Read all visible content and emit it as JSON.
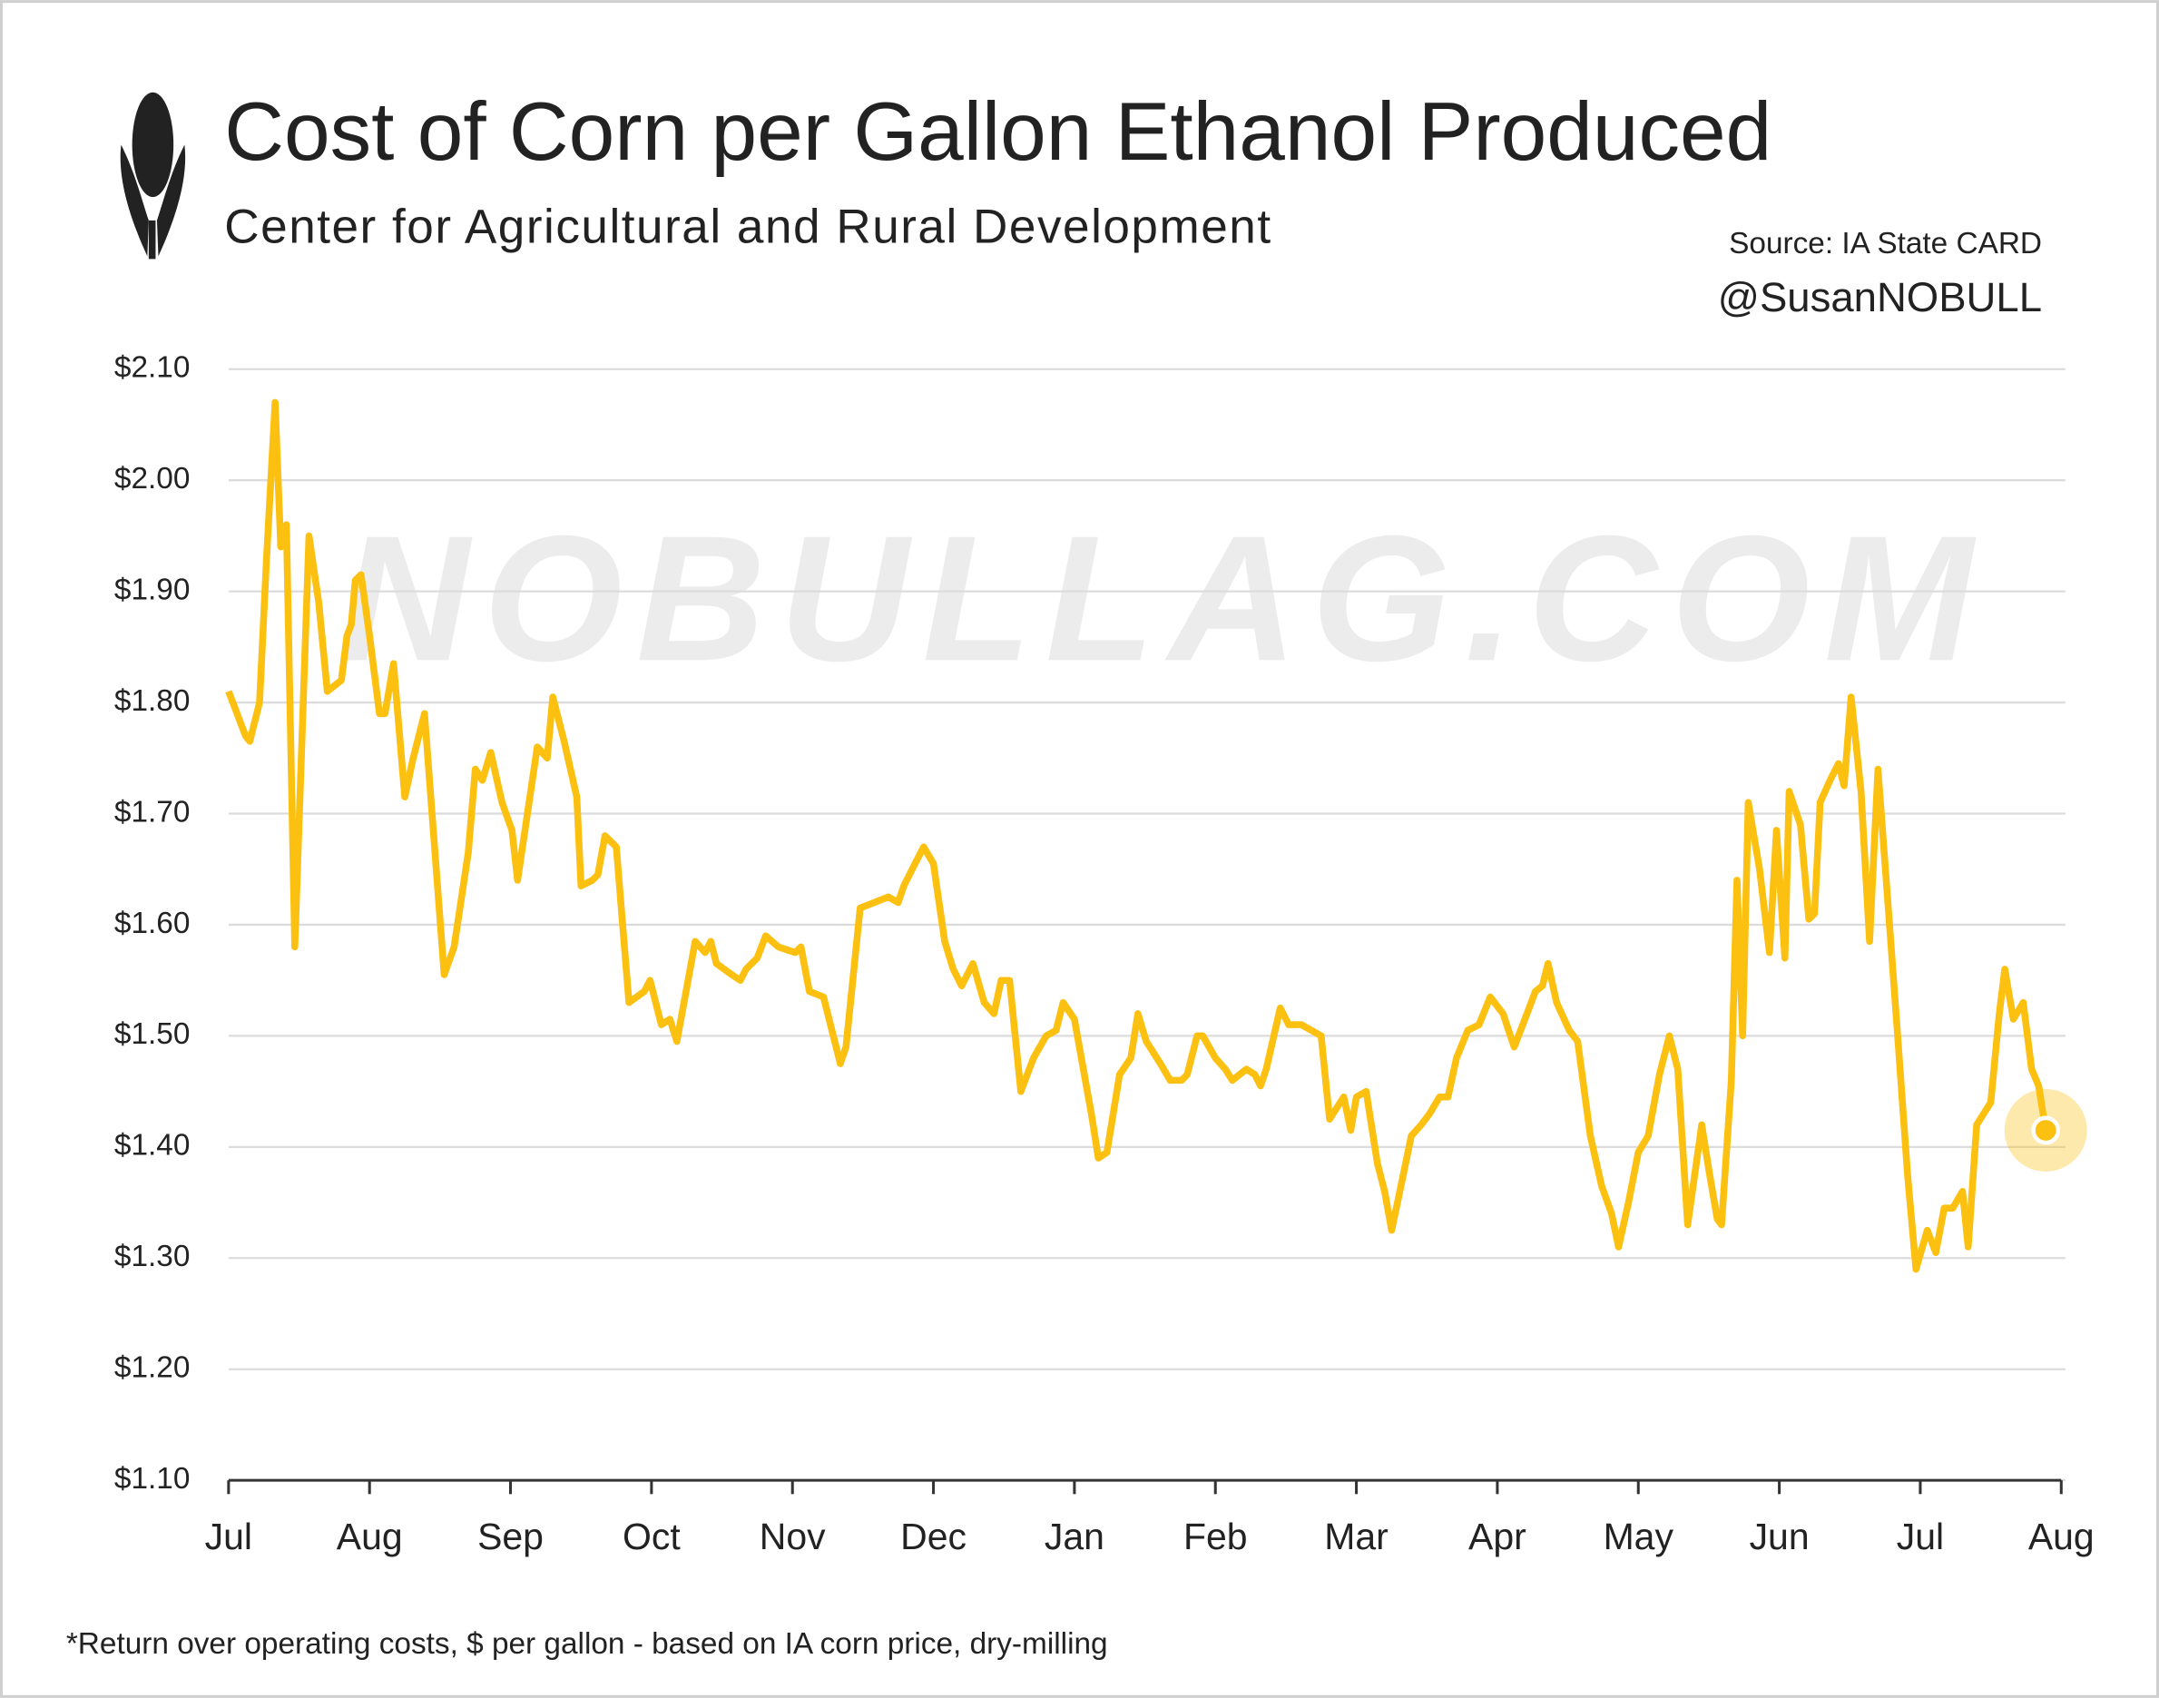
{
  "chart_data": {
    "type": "line",
    "title": "Cost of Corn per Gallon Ethanol Produced",
    "subtitle": "Center for Agricultural and Rural Development",
    "source": "Source: IA State CARD",
    "handle": "@SusanNOBULL",
    "watermark": "NOBULLAG.COM",
    "footnote": "*Return over operating costs, $ per gallon - based on IA corn price, dry-milling",
    "color": "#fcc010",
    "grid": true,
    "xlim": [
      0,
      13
    ],
    "xticks": [
      {
        "value": 0,
        "label": "Jul"
      },
      {
        "value": 1,
        "label": "Aug"
      },
      {
        "value": 2,
        "label": "Sep"
      },
      {
        "value": 3,
        "label": "Oct"
      },
      {
        "value": 4,
        "label": "Nov"
      },
      {
        "value": 5,
        "label": "Dec"
      },
      {
        "value": 6,
        "label": "Jan"
      },
      {
        "value": 7,
        "label": "Feb"
      },
      {
        "value": 8,
        "label": "Mar"
      },
      {
        "value": 9,
        "label": "Apr"
      },
      {
        "value": 10,
        "label": "May"
      },
      {
        "value": 11,
        "label": "Jun"
      },
      {
        "value": 12,
        "label": "Jul"
      },
      {
        "value": 13,
        "label": "Aug"
      }
    ],
    "ylim": [
      1.1,
      2.1
    ],
    "yticks": [
      {
        "value": 1.1,
        "label": "$1.10"
      },
      {
        "value": 1.2,
        "label": "$1.20"
      },
      {
        "value": 1.3,
        "label": "$1.30"
      },
      {
        "value": 1.4,
        "label": "$1.40"
      },
      {
        "value": 1.5,
        "label": "$1.50"
      },
      {
        "value": 1.6,
        "label": "$1.60"
      },
      {
        "value": 1.7,
        "label": "$1.70"
      },
      {
        "value": 1.8,
        "label": "$1.80"
      },
      {
        "value": 1.9,
        "label": "$1.90"
      },
      {
        "value": 2.0,
        "label": "$2.00"
      },
      {
        "value": 2.1,
        "label": "$2.10"
      }
    ],
    "x": [
      0,
      0.12,
      0.15,
      0.2,
      0.22,
      0.27,
      0.33,
      0.37,
      0.41,
      0.47,
      0.57,
      0.64,
      0.7,
      0.8,
      0.84,
      0.87,
      0.9,
      0.94,
      1.0,
      1.07,
      1.11,
      1.17,
      1.25,
      1.31,
      1.39,
      1.53,
      1.6,
      1.7,
      1.75,
      1.8,
      1.86,
      1.94,
      2.01,
      2.05,
      2.19,
      2.26,
      2.3,
      2.38,
      2.47,
      2.5,
      2.58,
      2.62,
      2.67,
      2.75,
      2.84,
      2.95,
      2.99,
      3.07,
      3.13,
      3.18,
      3.31,
      3.38,
      3.42,
      3.46,
      3.57,
      3.63,
      3.67,
      3.75,
      3.81,
      3.9,
      4.02,
      4.06,
      4.12,
      4.22,
      4.29,
      4.34,
      4.38,
      4.48,
      4.58,
      4.68,
      4.75,
      4.79,
      4.87,
      4.93,
      5.0,
      5.08,
      5.14,
      5.2,
      5.28,
      5.36,
      5.43,
      5.48,
      5.54,
      5.62,
      5.71,
      5.8,
      5.87,
      5.92,
      6.0,
      6.12,
      6.17,
      6.23,
      6.32,
      6.4,
      6.45,
      6.51,
      6.61,
      6.68,
      6.76,
      6.8,
      6.87,
      6.91,
      7.0,
      7.07,
      7.12,
      7.22,
      7.28,
      7.32,
      7.36,
      7.46,
      7.52,
      7.61,
      7.75,
      7.81,
      7.91,
      7.96,
      8.0,
      8.07,
      8.15,
      8.2,
      8.25,
      8.3,
      8.39,
      8.46,
      8.52,
      8.59,
      8.65,
      8.71,
      8.79,
      8.87,
      8.95,
      9.04,
      9.12,
      9.21,
      9.27,
      9.32,
      9.36,
      9.42,
      9.51,
      9.57,
      9.66,
      9.74,
      9.81,
      9.86,
      9.93,
      10.0,
      10.07,
      10.15,
      10.22,
      10.28,
      10.35,
      10.45,
      10.5,
      10.56,
      10.59,
      10.66,
      10.7,
      10.74,
      10.78,
      10.86,
      10.93,
      10.98,
      11.04,
      11.07,
      11.15,
      11.21,
      11.25,
      11.29,
      11.36,
      11.42,
      11.46,
      11.51,
      11.58,
      11.64,
      11.7,
      11.77,
      11.84,
      11.91,
      11.97,
      12.05,
      12.11,
      12.17,
      12.23,
      12.3,
      12.34,
      12.4,
      12.5,
      12.56,
      12.6,
      12.66,
      12.73,
      12.79,
      12.84,
      12.89
    ],
    "values": [
      1.81,
      1.77,
      1.765,
      1.79,
      1.8,
      1.93,
      2.07,
      1.94,
      1.96,
      1.58,
      1.95,
      1.89,
      1.81,
      1.82,
      1.86,
      1.87,
      1.91,
      1.915,
      1.86,
      1.79,
      1.79,
      1.835,
      1.715,
      1.75,
      1.79,
      1.555,
      1.58,
      1.665,
      1.74,
      1.73,
      1.755,
      1.71,
      1.685,
      1.64,
      1.76,
      1.75,
      1.805,
      1.765,
      1.715,
      1.635,
      1.64,
      1.645,
      1.68,
      1.67,
      1.53,
      1.54,
      1.55,
      1.51,
      1.515,
      1.495,
      1.585,
      1.575,
      1.585,
      1.565,
      1.555,
      1.55,
      1.56,
      1.57,
      1.59,
      1.58,
      1.575,
      1.58,
      1.54,
      1.535,
      1.5,
      1.475,
      1.49,
      1.615,
      1.62,
      1.625,
      1.62,
      1.635,
      1.655,
      1.67,
      1.655,
      1.585,
      1.56,
      1.545,
      1.565,
      1.53,
      1.52,
      1.55,
      1.55,
      1.45,
      1.48,
      1.5,
      1.505,
      1.53,
      1.515,
      1.43,
      1.39,
      1.395,
      1.465,
      1.48,
      1.52,
      1.495,
      1.475,
      1.46,
      1.46,
      1.465,
      1.5,
      1.5,
      1.48,
      1.47,
      1.46,
      1.47,
      1.465,
      1.455,
      1.47,
      1.525,
      1.51,
      1.51,
      1.5,
      1.425,
      1.445,
      1.415,
      1.445,
      1.45,
      1.385,
      1.36,
      1.325,
      1.355,
      1.41,
      1.42,
      1.43,
      1.445,
      1.445,
      1.48,
      1.505,
      1.51,
      1.535,
      1.52,
      1.49,
      1.52,
      1.54,
      1.545,
      1.565,
      1.53,
      1.505,
      1.495,
      1.41,
      1.365,
      1.34,
      1.31,
      1.35,
      1.395,
      1.41,
      1.465,
      1.5,
      1.47,
      1.33,
      1.42,
      1.38,
      1.335,
      1.33,
      1.46,
      1.64,
      1.5,
      1.71,
      1.65,
      1.575,
      1.685,
      1.57,
      1.72,
      1.69,
      1.605,
      1.61,
      1.71,
      1.73,
      1.745,
      1.725,
      1.805,
      1.72,
      1.585,
      1.74,
      1.62,
      1.5,
      1.375,
      1.29,
      1.325,
      1.305,
      1.345,
      1.345,
      1.36,
      1.31,
      1.42,
      1.44,
      1.52,
      1.56,
      1.515,
      1.53,
      1.47,
      1.455,
      1.415
    ]
  }
}
